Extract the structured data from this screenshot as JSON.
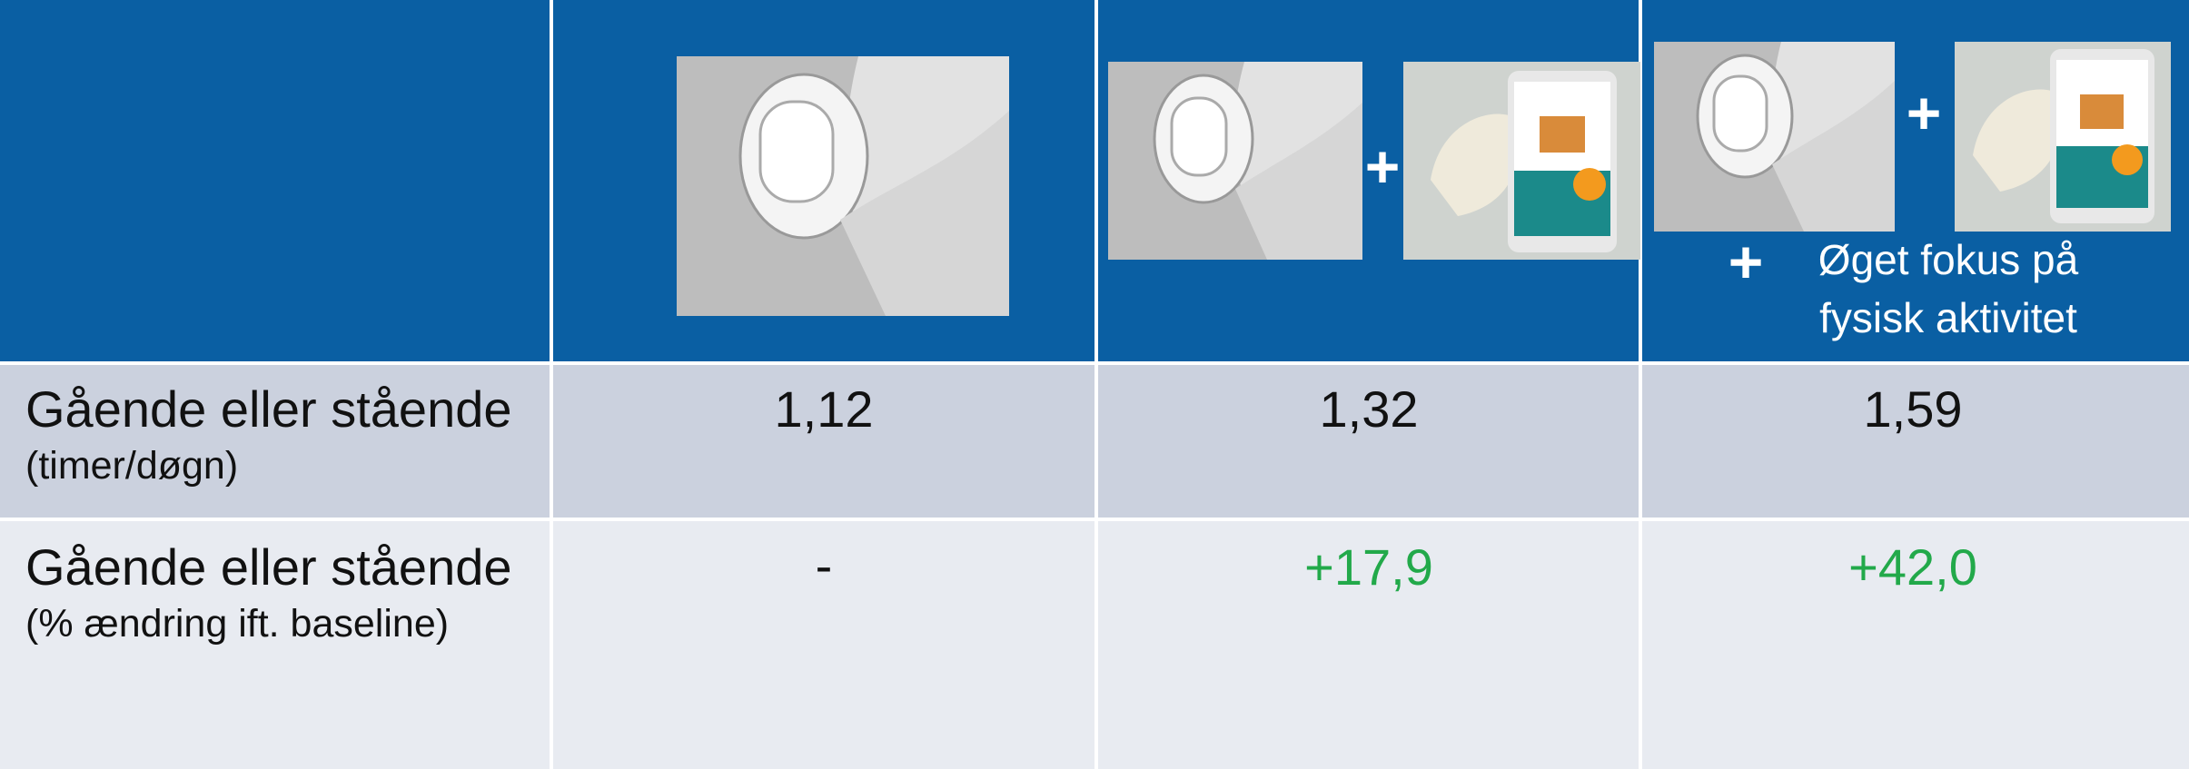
{
  "table": {
    "header": {
      "plus_signs": [
        "+",
        "+",
        "+"
      ],
      "note": "Øget fokus på fysisk aktivitet"
    },
    "rows": [
      {
        "label": "Gående eller stående",
        "unit": "(timer/døgn)",
        "values": [
          "1,12",
          "1,32",
          "1,59"
        ]
      },
      {
        "label": "Gående eller stående",
        "unit": "(% ændring ift. baseline)",
        "values": [
          "-",
          "+17,9",
          "+42,0"
        ]
      }
    ]
  }
}
